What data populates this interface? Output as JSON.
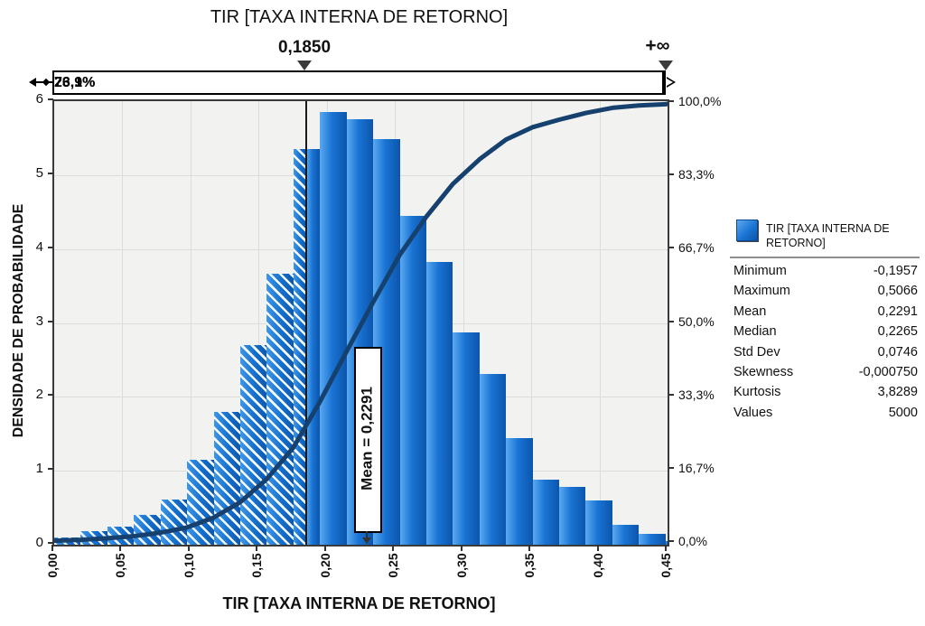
{
  "chart": {
    "title": "TIR [TAXA INTERNA DE RETORNO]",
    "x_axis": {
      "title": "TIR [TAXA INTERNA DE RETORNO]",
      "tick_labels": [
        "0,00",
        "0,05",
        "0,10",
        "0,15",
        "0,20",
        "0,25",
        "0,30",
        "0,35",
        "0,40",
        "0,45"
      ],
      "min": 0,
      "max": 0.45,
      "tick_step": 0.05
    },
    "y_left": {
      "title": "DENSIDADE DE PROBABILIDADE",
      "tick_labels": [
        "0",
        "1",
        "2",
        "3",
        "4",
        "5",
        "6"
      ],
      "min": 0,
      "max": 6
    },
    "y_right": {
      "tick_labels": [
        "0,0%",
        "16,7%",
        "33,3%",
        "50,0%",
        "66,7%",
        "83,3%",
        "100,0%"
      ]
    },
    "delimiter": {
      "threshold_label": "0,1850",
      "threshold_value": 0.185,
      "upper_label": "+∞",
      "left_pct_label": "26,1%",
      "right_pct_label": "73,9%"
    },
    "mean_flag": {
      "label": "Mean = 0,2291",
      "value": 0.2291
    },
    "colors": {
      "band_blue": "#1786ee",
      "bar_light": "#5aa9f0",
      "bar_dark": "#0b55ac",
      "curve": "#16416f",
      "plot_bg": "#f2f2f0",
      "grid": "#dcdcd9"
    }
  },
  "chart_data": {
    "type": "bar",
    "subtype": "histogram-with-cumulative-overlay",
    "bin_start": 0.0,
    "bin_width": 0.0195,
    "densities": [
      0.1,
      0.18,
      0.25,
      0.4,
      0.61,
      1.15,
      1.8,
      2.7,
      3.67,
      5.35,
      5.85,
      5.76,
      5.49,
      4.45,
      3.82,
      2.87,
      2.31,
      1.44,
      0.88,
      0.78,
      0.6,
      0.27,
      0.15,
      0.05
    ],
    "hatched_below": 0.185,
    "cumulative_start_pct": 0.5,
    "title": "TIR [TAXA INTERNA DE RETORNO]",
    "xlabel": "TIR [TAXA INTERNA DE RETORNO]",
    "ylabel": "DENSIDADE DE PROBABILIDADE",
    "xlim": [
      0,
      0.45
    ],
    "ylim": [
      0,
      6
    ],
    "ylim_right_pct": [
      0,
      100
    ],
    "grid": true,
    "legend_position": "right"
  },
  "legend": {
    "series_label": "TIR [TAXA INTERNA DE RETORNO]"
  },
  "stats": {
    "rows": [
      {
        "label": "Minimum",
        "value": "-0,1957"
      },
      {
        "label": "Maximum",
        "value": "0,5066"
      },
      {
        "label": "Mean",
        "value": "0,2291"
      },
      {
        "label": "Median",
        "value": "0,2265"
      },
      {
        "label": "Std Dev",
        "value": "0,0746"
      },
      {
        "label": "Skewness",
        "value": "-0,000750"
      },
      {
        "label": "Kurtosis",
        "value": "3,8289"
      },
      {
        "label": "Values",
        "value": "5000"
      }
    ]
  }
}
